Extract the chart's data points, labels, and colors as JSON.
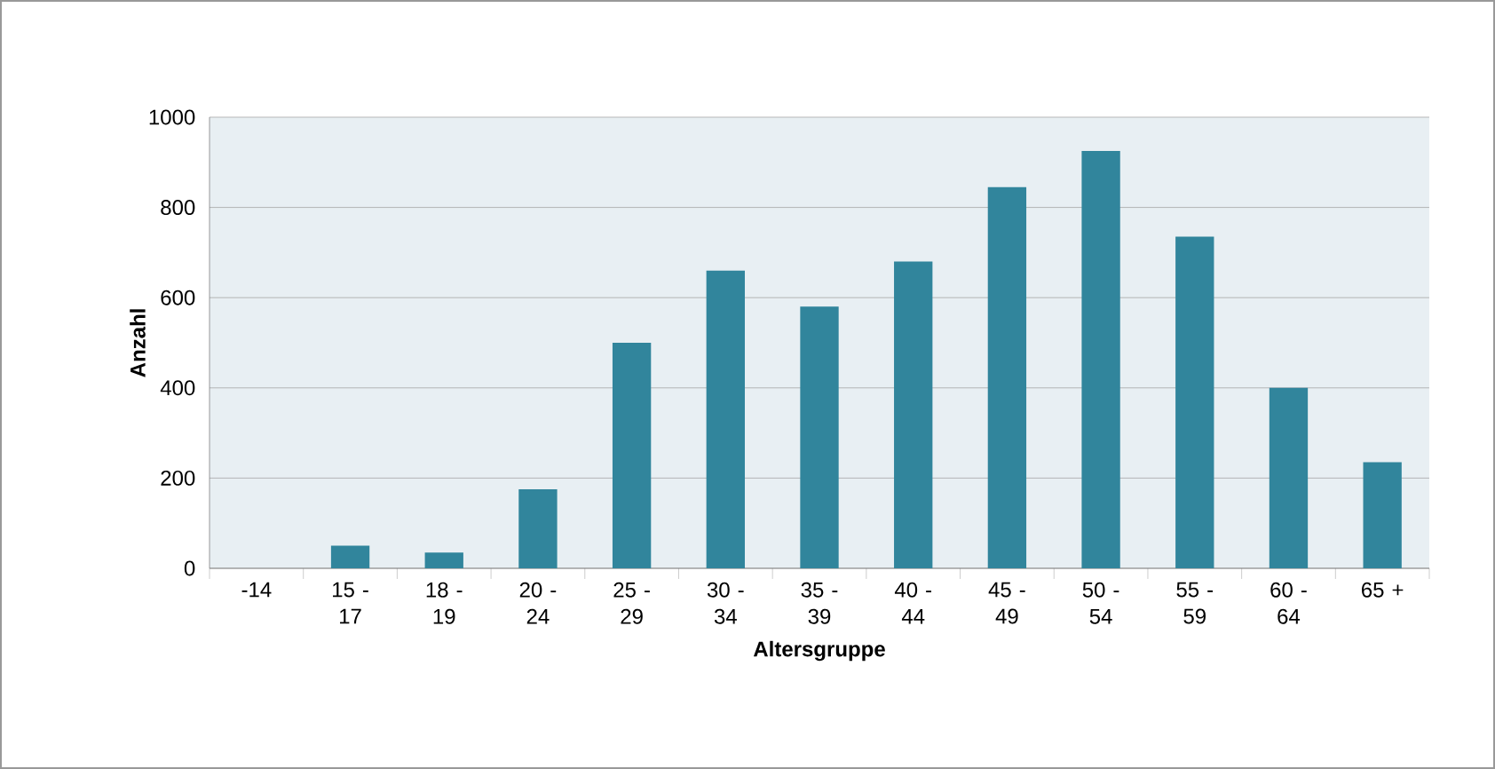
{
  "chart_data": {
    "type": "bar",
    "xlabel": "Altersgruppe",
    "ylabel": "Anzahl",
    "categories": [
      "-14",
      "15 - 17",
      "18 - 19",
      "20 - 24",
      "25 - 29",
      "30 - 34",
      "35 - 39",
      "40 - 44",
      "45 - 49",
      "50 - 54",
      "55 - 59",
      "60 - 64",
      "65 +"
    ],
    "values": [
      0,
      50,
      35,
      175,
      500,
      660,
      580,
      680,
      845,
      925,
      735,
      400,
      235
    ],
    "color": "#31859c",
    "ylim": [
      0,
      1000
    ],
    "yticks": [
      0,
      200,
      400,
      600,
      800,
      1000
    ],
    "grid": "y"
  }
}
